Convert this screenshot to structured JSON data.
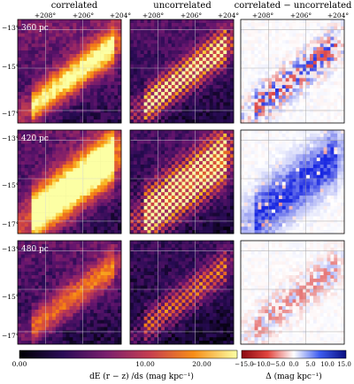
{
  "chart_data": {
    "type": "heatmap",
    "layout": {
      "rows": 3,
      "columns": 3
    },
    "column_titles": [
      "correlated",
      "uncorrelated",
      "correlated − uncorrelated"
    ],
    "row_labels": [
      "360 pc",
      "420 pc",
      "480 pc"
    ],
    "x_tick_labels": [
      "+208°",
      "+206°",
      "+204°"
    ],
    "y_tick_labels": [
      "−13°",
      "−15°",
      "−17°"
    ],
    "colorbars": [
      {
        "label": "dE (r − z) /ds  (mag kpc⁻¹)",
        "colormap": "inferno",
        "range": [
          0,
          25
        ],
        "tick_labels": [
          "0.00",
          "10.00",
          "20.00"
        ]
      },
      {
        "label": "Δ  (mag kpc⁻¹)",
        "colormap": "diverging blue-white-red",
        "range": [
          -15,
          15
        ],
        "tick_labels": [
          "−15.0",
          "−10.0",
          "−5.0",
          "0.0",
          "5.0",
          "10.0",
          "15.0"
        ]
      }
    ],
    "colors": {
      "positive": "#1a35d6",
      "negative": "#d62a2a",
      "zero": "#ffffff"
    }
  }
}
